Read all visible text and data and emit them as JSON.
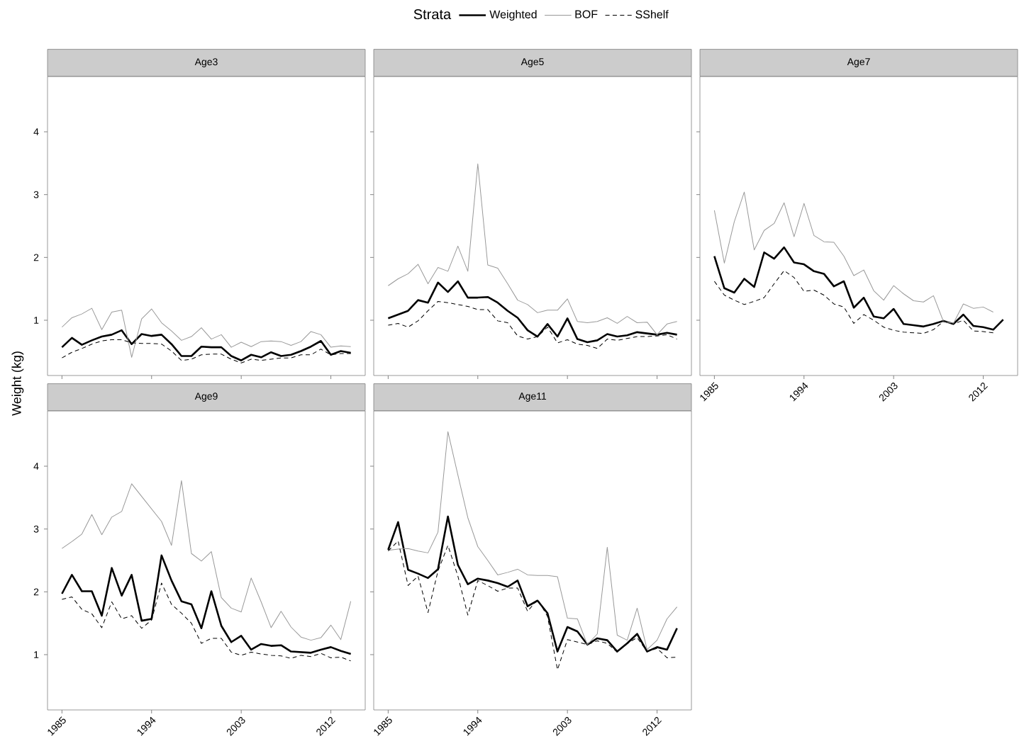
{
  "chart_data": [
    {
      "type": "line",
      "title": "Age3",
      "ylabel": "Weight (kg)",
      "legend_title": "Strata",
      "legend": "top",
      "tick_labels": "y",
      "x": [
        1985,
        1986,
        1987,
        1988,
        1989,
        1990,
        1991,
        1992,
        1993,
        1994,
        1995,
        1996,
        1997,
        1998,
        1999,
        2000,
        2001,
        2002,
        2003,
        2004,
        2005,
        2006,
        2007,
        2008,
        2009,
        2010,
        2011,
        2012,
        2013,
        2014
      ],
      "xlim": [
        1983.55,
        2015.45
      ],
      "ylim": [
        0.12,
        4.88
      ],
      "xticks": [
        1985,
        1994,
        2003,
        2012
      ],
      "yticks": [
        1,
        2,
        3,
        4
      ],
      "series": [
        {
          "name": "Weighted",
          "color": "#000000",
          "line_style": "solid",
          "values": [
            0.57,
            0.72,
            0.61,
            0.68,
            0.74,
            0.77,
            0.84,
            0.62,
            0.78,
            0.75,
            0.77,
            0.62,
            0.43,
            0.43,
            0.58,
            0.57,
            0.57,
            0.43,
            0.36,
            0.45,
            0.41,
            0.49,
            0.43,
            0.45,
            0.51,
            0.58,
            0.67,
            0.45,
            0.51,
            0.48
          ]
        },
        {
          "name": "BOF",
          "color": "#999999",
          "line_style": "solid",
          "values": [
            0.89,
            1.04,
            1.1,
            1.19,
            0.85,
            1.13,
            1.16,
            0.41,
            1.02,
            1.18,
            0.96,
            0.83,
            0.68,
            0.74,
            0.88,
            0.7,
            0.77,
            0.57,
            0.65,
            0.58,
            0.66,
            0.67,
            0.66,
            0.6,
            0.66,
            0.82,
            0.77,
            0.57,
            0.59,
            0.58
          ]
        },
        {
          "name": "SShelf",
          "color": "#000000",
          "line_style": "dashed",
          "values": [
            0.4,
            0.49,
            0.55,
            0.62,
            0.67,
            0.69,
            0.69,
            0.64,
            0.63,
            0.63,
            0.62,
            0.51,
            0.36,
            0.38,
            0.45,
            0.46,
            0.46,
            0.38,
            0.32,
            0.38,
            0.36,
            0.38,
            0.4,
            0.4,
            0.45,
            0.45,
            0.54,
            0.45,
            0.47,
            0.47
          ]
        }
      ]
    },
    {
      "type": "line",
      "title": "Age5",
      "tick_labels": false,
      "x": [
        1985,
        1986,
        1987,
        1988,
        1989,
        1990,
        1991,
        1992,
        1993,
        1994,
        1995,
        1996,
        1997,
        1998,
        1999,
        2000,
        2001,
        2002,
        2003,
        2004,
        2005,
        2006,
        2007,
        2008,
        2009,
        2010,
        2011,
        2012,
        2013,
        2014
      ],
      "xlim": [
        1983.55,
        2015.45
      ],
      "ylim": [
        0.12,
        4.88
      ],
      "xticks": [
        1985,
        1994,
        2003,
        2012
      ],
      "yticks": [
        1,
        2,
        3,
        4
      ],
      "series": [
        {
          "color": "#000000",
          "line_style": "solid",
          "values": [
            1.03,
            1.09,
            1.15,
            1.32,
            1.28,
            1.6,
            1.45,
            1.62,
            1.36,
            1.36,
            1.37,
            1.28,
            1.15,
            1.04,
            0.84,
            0.74,
            0.94,
            0.74,
            1.03,
            0.7,
            0.65,
            0.68,
            0.78,
            0.74,
            0.76,
            0.81,
            0.79,
            0.77,
            0.8,
            0.77
          ]
        },
        {
          "color": "#999999",
          "line_style": "solid",
          "values": [
            1.55,
            1.66,
            1.74,
            1.89,
            1.58,
            1.84,
            1.78,
            2.18,
            1.78,
            3.49,
            1.88,
            1.83,
            1.58,
            1.32,
            1.25,
            1.12,
            1.16,
            1.16,
            1.34,
            0.98,
            0.96,
            0.98,
            1.04,
            0.95,
            1.06,
            0.96,
            0.97,
            0.77,
            0.94,
            0.98
          ]
        },
        {
          "color": "#000000",
          "line_style": "dashed",
          "values": [
            0.92,
            0.95,
            0.89,
            0.99,
            1.15,
            1.3,
            1.28,
            1.25,
            1.22,
            1.17,
            1.17,
            0.99,
            0.96,
            0.75,
            0.7,
            0.74,
            0.89,
            0.64,
            0.69,
            0.62,
            0.6,
            0.55,
            0.7,
            0.68,
            0.71,
            0.74,
            0.74,
            0.75,
            0.77,
            0.7
          ]
        }
      ]
    },
    {
      "type": "line",
      "title": "Age7",
      "tick_labels": "x",
      "x": [
        1985,
        1986,
        1987,
        1988,
        1989,
        1990,
        1991,
        1992,
        1993,
        1994,
        1995,
        1996,
        1997,
        1998,
        1999,
        2000,
        2001,
        2002,
        2003,
        2004,
        2005,
        2006,
        2007,
        2008,
        2009,
        2010,
        2011,
        2012,
        2013,
        2014
      ],
      "xlim": [
        1983.55,
        2015.45
      ],
      "ylim": [
        0.12,
        4.88
      ],
      "xticks": [
        1985,
        1994,
        2003,
        2012
      ],
      "yticks": [
        1,
        2,
        3,
        4
      ],
      "series": [
        {
          "color": "#000000",
          "line_style": "solid",
          "values": [
            2.02,
            1.51,
            1.44,
            1.66,
            1.53,
            2.08,
            1.98,
            2.16,
            1.92,
            1.89,
            1.78,
            1.74,
            1.54,
            1.62,
            1.2,
            1.36,
            1.06,
            1.03,
            1.18,
            0.94,
            0.92,
            0.9,
            0.94,
            0.99,
            0.94,
            1.09,
            0.91,
            0.89,
            0.85,
            1.01
          ]
        },
        {
          "color": "#999999",
          "line_style": "solid",
          "values": [
            2.75,
            1.91,
            2.57,
            3.04,
            2.12,
            2.43,
            2.54,
            2.87,
            2.33,
            2.86,
            2.35,
            2.25,
            2.24,
            2.02,
            1.71,
            1.8,
            1.47,
            1.32,
            1.55,
            1.42,
            1.31,
            1.29,
            1.39,
            0.98,
            0.95,
            1.26,
            1.19,
            1.21,
            1.13,
            null
          ]
        },
        {
          "color": "#000000",
          "line_style": "dashed",
          "values": [
            1.62,
            1.4,
            1.32,
            1.25,
            1.3,
            1.36,
            1.58,
            1.79,
            1.68,
            1.46,
            1.48,
            1.4,
            1.26,
            1.21,
            0.95,
            1.09,
            1.0,
            0.89,
            0.84,
            0.81,
            0.8,
            0.79,
            0.85,
            0.98,
            0.94,
            1.0,
            0.83,
            0.82,
            0.8,
            null
          ]
        }
      ]
    },
    {
      "type": "line",
      "title": "Age9",
      "x": [
        1985,
        1986,
        1987,
        1988,
        1989,
        1990,
        1991,
        1992,
        1993,
        1994,
        1995,
        1996,
        1997,
        1998,
        1999,
        2000,
        2001,
        2002,
        2003,
        2004,
        2005,
        2006,
        2007,
        2008,
        2009,
        2010,
        2011,
        2012,
        2013,
        2014
      ],
      "xlim": [
        1983.55,
        2015.45
      ],
      "ylim": [
        0.12,
        4.88
      ],
      "xticks": [
        1985,
        1994,
        2003,
        2012
      ],
      "yticks": [
        1,
        2,
        3,
        4
      ],
      "series": [
        {
          "color": "#000000",
          "line_style": "solid",
          "values": [
            1.97,
            2.27,
            2.01,
            2.01,
            1.62,
            2.38,
            1.94,
            2.27,
            1.54,
            1.57,
            2.58,
            2.18,
            1.85,
            1.8,
            1.42,
            2.01,
            1.46,
            1.2,
            1.3,
            1.08,
            1.17,
            1.14,
            1.15,
            1.05,
            1.04,
            1.03,
            1.08,
            1.12,
            1.06,
            1.01
          ]
        },
        {
          "color": "#999999",
          "line_style": "solid",
          "values": [
            2.69,
            2.8,
            2.92,
            3.23,
            2.91,
            3.19,
            3.28,
            3.72,
            3.52,
            3.32,
            3.12,
            2.74,
            3.77,
            2.61,
            2.49,
            2.64,
            1.91,
            1.74,
            1.68,
            2.22,
            1.84,
            1.43,
            1.69,
            1.44,
            1.28,
            1.23,
            1.27,
            1.47,
            1.24,
            1.85
          ]
        },
        {
          "color": "#000000",
          "line_style": "dashed",
          "values": [
            1.88,
            1.92,
            1.72,
            1.65,
            1.43,
            1.84,
            1.57,
            1.62,
            1.42,
            1.55,
            2.14,
            1.8,
            1.66,
            1.5,
            1.18,
            1.26,
            1.26,
            1.04,
            0.99,
            1.04,
            1.01,
            0.99,
            0.98,
            0.94,
            0.99,
            0.97,
            1.02,
            0.95,
            0.96,
            0.9
          ]
        }
      ]
    },
    {
      "type": "line",
      "title": "Age11",
      "tick_labels": "x",
      "x": [
        1985,
        1986,
        1987,
        1988,
        1989,
        1990,
        1991,
        1992,
        1993,
        1994,
        1995,
        1996,
        1997,
        1998,
        1999,
        2000,
        2001,
        2002,
        2003,
        2004,
        2005,
        2006,
        2007,
        2008,
        2009,
        2010,
        2011,
        2012,
        2013,
        2014
      ],
      "xlim": [
        1983.55,
        2015.45
      ],
      "ylim": [
        0.12,
        4.88
      ],
      "xticks": [
        1985,
        1994,
        2003,
        2012
      ],
      "yticks": [
        1,
        2,
        3,
        4
      ],
      "series": [
        {
          "color": "#000000",
          "line_style": "solid",
          "values": [
            2.67,
            3.11,
            2.35,
            2.29,
            2.22,
            2.36,
            3.2,
            2.43,
            2.12,
            2.21,
            2.18,
            2.14,
            2.08,
            2.18,
            1.77,
            1.86,
            1.66,
            1.05,
            1.44,
            1.37,
            1.16,
            1.26,
            1.23,
            1.05,
            1.18,
            1.33,
            1.05,
            1.12,
            1.08,
            1.42
          ]
        },
        {
          "color": "#999999",
          "line_style": "solid",
          "values": [
            2.66,
            2.68,
            2.69,
            2.65,
            2.62,
            2.95,
            4.55,
            3.86,
            3.18,
            2.72,
            2.5,
            2.27,
            2.31,
            2.36,
            2.27,
            2.26,
            2.26,
            2.24,
            1.58,
            1.57,
            1.16,
            1.33,
            2.71,
            1.31,
            1.23,
            1.74,
            1.08,
            1.23,
            1.57,
            1.76
          ]
        },
        {
          "color": "#000000",
          "line_style": "dashed",
          "values": [
            2.65,
            2.81,
            2.1,
            2.25,
            1.67,
            2.33,
            2.74,
            2.25,
            1.63,
            2.18,
            2.1,
            2.01,
            2.06,
            2.06,
            1.69,
            1.88,
            1.61,
            0.76,
            1.24,
            1.2,
            1.16,
            1.22,
            1.18,
            1.04,
            1.18,
            1.27,
            1.05,
            1.1,
            0.95,
            0.96
          ]
        }
      ]
    }
  ]
}
